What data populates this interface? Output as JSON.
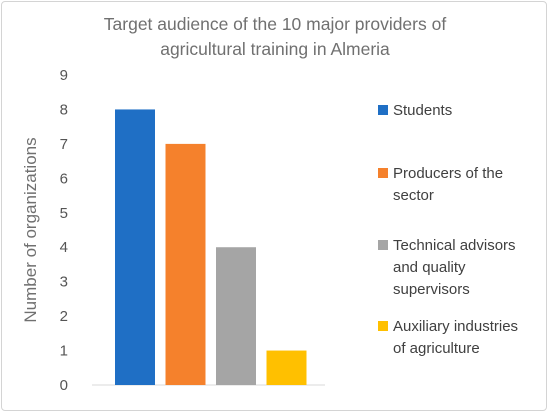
{
  "chart_data": {
    "type": "bar",
    "title": "Target audience of the 10 major providers of agricultural training in Almeria",
    "title_lines": [
      "Target audience of the 10 major providers of",
      "agricultural training in Almeria"
    ],
    "ylabel": "Number of organizations",
    "xlabel": "",
    "ylim": [
      0,
      9
    ],
    "yticks": [
      "0",
      "1",
      "2",
      "3",
      "4",
      "5",
      "6",
      "7",
      "8",
      "9"
    ],
    "grid": false,
    "legend_position": "right",
    "series": [
      {
        "name": "Students",
        "legend_lines": [
          "Students"
        ],
        "value": 8,
        "color": "#1f6fc5"
      },
      {
        "name": "Producers of the sector",
        "legend_lines": [
          "Producers of the",
          "sector"
        ],
        "value": 7,
        "color": "#f5812c"
      },
      {
        "name": "Technical advisors and quality supervisors",
        "legend_lines": [
          "Technical advisors",
          "and quality",
          "supervisors"
        ],
        "value": 4,
        "color": "#a5a5a5"
      },
      {
        "name": "Auxiliary industries of agriculture",
        "legend_lines": [
          "Auxiliary industries",
          "of agriculture"
        ],
        "value": 1,
        "color": "#ffc000"
      }
    ]
  }
}
